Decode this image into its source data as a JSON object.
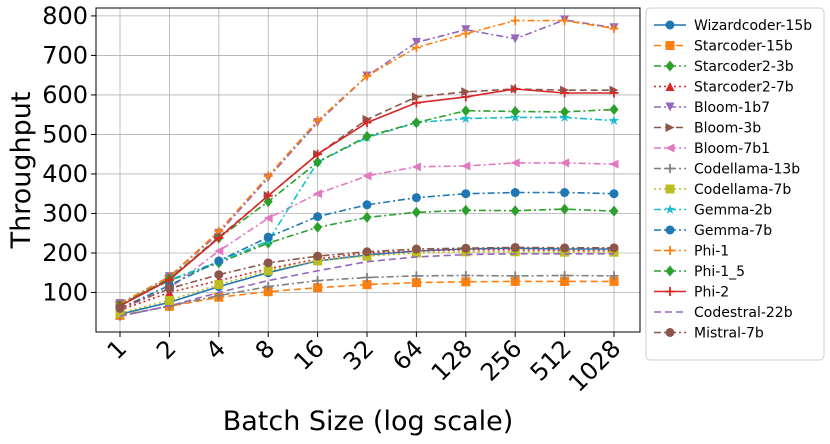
{
  "chart_data": {
    "type": "line",
    "xlabel": "Batch Size (log scale)",
    "ylabel": "Throughput",
    "x": [
      "1",
      "2",
      "4",
      "8",
      "16",
      "32",
      "64",
      "128",
      "256",
      "512",
      "1028"
    ],
    "ylim": [
      0,
      820
    ],
    "yticks": [
      100,
      200,
      300,
      400,
      500,
      600,
      700,
      800
    ],
    "grid": true,
    "legend_position": "right, outside plot",
    "series": [
      {
        "name": "Wizardcoder-15b",
        "color": "#1f77b4",
        "dash": "solid",
        "marker": "circle",
        "values": [
          45,
          75,
          115,
          150,
          180,
          195,
          205,
          210,
          212,
          210,
          210
        ]
      },
      {
        "name": "Starcoder-15b",
        "color": "#ff7f0e",
        "dash": "dashed",
        "marker": "square",
        "values": [
          42,
          65,
          88,
          102,
          112,
          120,
          125,
          127,
          128,
          128,
          128
        ]
      },
      {
        "name": "Starcoder2-3b",
        "color": "#2ca02c",
        "dash": "dashdot",
        "marker": "diamond",
        "values": [
          70,
          130,
          175,
          225,
          265,
          290,
          303,
          308,
          307,
          311,
          306
        ]
      },
      {
        "name": "Starcoder2-7b",
        "color": "#d62728",
        "dash": "dotted",
        "marker": "triangle-up",
        "values": [
          55,
          100,
          130,
          160,
          185,
          200,
          205,
          208,
          208,
          206,
          206
        ]
      },
      {
        "name": "Bloom-1b7",
        "color": "#9467bd",
        "dash": "dashdot",
        "marker": "triangle-down",
        "values": [
          72,
          140,
          250,
          390,
          530,
          648,
          733,
          765,
          742,
          790,
          770
        ]
      },
      {
        "name": "Bloom-3b",
        "color": "#8c564b",
        "dash": "dashed",
        "marker": "triangle-right",
        "values": [
          68,
          135,
          240,
          345,
          450,
          538,
          595,
          608,
          615,
          612,
          612
        ]
      },
      {
        "name": "Bloom-7b1",
        "color": "#e377c2",
        "dash": "dashdot",
        "marker": "triangle-left",
        "values": [
          58,
          110,
          205,
          288,
          350,
          395,
          418,
          420,
          428,
          428,
          425
        ]
      },
      {
        "name": "Codellama-13b",
        "color": "#7f7f7f",
        "dash": "dashdot",
        "marker": "plus",
        "values": [
          40,
          66,
          92,
          115,
          130,
          138,
          142,
          143,
          142,
          143,
          142
        ]
      },
      {
        "name": "Codellama-7b",
        "color": "#bcbd22",
        "dash": "dotted",
        "marker": "square",
        "values": [
          48,
          80,
          120,
          155,
          180,
          192,
          200,
          203,
          203,
          202,
          202
        ]
      },
      {
        "name": "Gemma-2b",
        "color": "#17becf",
        "dash": "dashdot",
        "marker": "star",
        "values": [
          70,
          132,
          178,
          230,
          430,
          492,
          530,
          540,
          543,
          543,
          535
        ]
      },
      {
        "name": "Gemma-7b",
        "color": "#1f77b4",
        "dash": "dashdot",
        "marker": "circle",
        "values": [
          60,
          118,
          180,
          240,
          292,
          322,
          340,
          350,
          353,
          353,
          350
        ]
      },
      {
        "name": "Phi-1",
        "color": "#ff7f0e",
        "dash": "dashdot",
        "marker": "plus",
        "values": [
          72,
          140,
          255,
          395,
          535,
          648,
          720,
          755,
          788,
          788,
          768
        ]
      },
      {
        "name": "Phi-1_5",
        "color": "#2ca02c",
        "dash": "dashdot",
        "marker": "diamond",
        "values": [
          68,
          135,
          238,
          330,
          430,
          495,
          530,
          560,
          558,
          557,
          563
        ]
      },
      {
        "name": "Phi-2",
        "color": "#d62728",
        "dash": "solid",
        "marker": "plus",
        "values": [
          66,
          132,
          238,
          345,
          450,
          530,
          580,
          595,
          615,
          605,
          605
        ]
      },
      {
        "name": "Codestral-22b",
        "color": "#9467bd",
        "dash": "dashed",
        "marker": "none",
        "values": [
          40,
          66,
          100,
          130,
          155,
          178,
          190,
          196,
          198,
          198,
          198
        ]
      },
      {
        "name": "Mistral-7b",
        "color": "#8c564b",
        "dash": "dashdot",
        "marker": "circle",
        "values": [
          60,
          110,
          145,
          175,
          192,
          203,
          210,
          212,
          214,
          213,
          213
        ]
      }
    ]
  }
}
